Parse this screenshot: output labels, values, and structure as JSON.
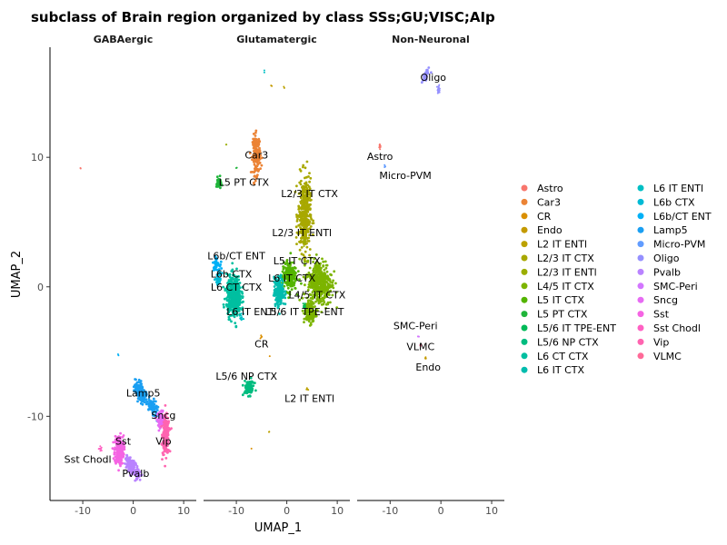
{
  "chart_data": {
    "type": "scatter",
    "title": "subclass of Brain region organized by class SSs;GU;VISC;AIp",
    "xlabel": "UMAP_1",
    "ylabel": "UMAP_2",
    "xlim": [
      -16.5,
      12.5
    ],
    "ylim": [
      -16.5,
      18.5
    ],
    "x_ticks": [
      -10,
      0,
      10
    ],
    "y_ticks": [
      -10,
      0,
      10
    ],
    "legend_position": "right",
    "facets": [
      {
        "name": "GABAergic",
        "clusters": [
          {
            "class": "Lamp5",
            "x": 1.5,
            "y": -8.2,
            "sx": 1.2,
            "sy": 0.6,
            "rot": -30,
            "n": 160,
            "label": "Lamp5",
            "lx": 2,
            "ly": -8.2
          },
          {
            "class": "Lamp5",
            "x": 3.8,
            "y": -9.2,
            "sx": 0.9,
            "sy": 0.5,
            "rot": -30,
            "n": 80
          },
          {
            "class": "Sncg",
            "x": 5.5,
            "y": -10.2,
            "sx": 0.7,
            "sy": 0.5,
            "rot": 0,
            "n": 80,
            "label": "Sncg",
            "lx": 6,
            "ly": -9.9
          },
          {
            "class": "Vip",
            "x": 6.5,
            "y": -11.5,
            "sx": 0.6,
            "sy": 1.3,
            "rot": 0,
            "n": 220,
            "label": "Vip",
            "lx": 6,
            "ly": -11.9
          },
          {
            "class": "Sst",
            "x": -2.8,
            "y": -12.6,
            "sx": 0.8,
            "sy": 1.0,
            "rot": 0,
            "n": 260,
            "label": "Sst",
            "lx": -2,
            "ly": -11.9
          },
          {
            "class": "Sst Chodl",
            "x": -6.5,
            "y": -12.5,
            "sx": 0.3,
            "sy": 0.2,
            "rot": 0,
            "n": 10,
            "label": "Sst Chodl",
            "lx": -9,
            "ly": -13.3
          },
          {
            "class": "Pvalb",
            "x": -0.5,
            "y": -13.8,
            "sx": 0.9,
            "sy": 0.5,
            "rot": -25,
            "n": 150,
            "label": "Pvalb",
            "lx": 0.5,
            "ly": -14.4
          },
          {
            "class": "Pvalb",
            "x": 0.8,
            "y": -14.4,
            "sx": 0.6,
            "sy": 0.4,
            "rot": -25,
            "n": 60
          },
          {
            "class": "Astro",
            "x": -10.5,
            "y": 9.2,
            "sx": 0.1,
            "sy": 0.1,
            "rot": 0,
            "n": 2
          },
          {
            "class": "L6b/CT ENT",
            "x": -3,
            "y": -5.3,
            "sx": 0.1,
            "sy": 0.1,
            "rot": 0,
            "n": 2
          }
        ]
      },
      {
        "name": "Glutamatergic",
        "clusters": [
          {
            "class": "Car3",
            "x": -6,
            "y": 10.2,
            "sx": 0.7,
            "sy": 1.4,
            "rot": 0,
            "n": 160,
            "label": "Car3",
            "lx": -6,
            "ly": 10.2
          },
          {
            "class": "L5 PT CTX",
            "x": -13.5,
            "y": 8.0,
            "sx": 0.4,
            "sy": 0.4,
            "rot": 0,
            "n": 40,
            "label": "L5 PT CTX",
            "lx": -8.5,
            "ly": 8.1
          },
          {
            "class": "L2/3 IT CTX",
            "x": 3.5,
            "y": 5.5,
            "sx": 1.1,
            "sy": 2.6,
            "rot": 0,
            "n": 380,
            "label": "L2/3 IT CTX",
            "lx": 4.5,
            "ly": 7.2
          },
          {
            "class": "L2/3 IT ENTl",
            "x": 3.5,
            "y": 3.5,
            "sx": 0.3,
            "sy": 0.3,
            "rot": 0,
            "n": 10,
            "label": "L2/3 IT ENTl",
            "lx": 3,
            "ly": 4.2
          },
          {
            "class": "L4/5 IT CTX",
            "x": 6.5,
            "y": 0.3,
            "sx": 2.2,
            "sy": 1.6,
            "rot": 0,
            "n": 380,
            "label": "L4/5 IT CTX",
            "lx": 6,
            "ly": -0.6
          },
          {
            "class": "L4/5 IT CTX",
            "x": 4.5,
            "y": -2.0,
            "sx": 1.0,
            "sy": 0.8,
            "rot": 0,
            "n": 120
          },
          {
            "class": "L5 IT CTX",
            "x": 0.5,
            "y": 0.8,
            "sx": 1.3,
            "sy": 1.0,
            "rot": 0,
            "n": 200,
            "label": "L5 IT CTX",
            "lx": 2,
            "ly": 2
          },
          {
            "class": "L6 IT CTX",
            "x": -1.5,
            "y": -0.4,
            "sx": 0.9,
            "sy": 1.0,
            "rot": 0,
            "n": 200,
            "label": "L6 IT CTX",
            "lx": 1,
            "ly": 0.7
          },
          {
            "class": "L5/6 IT TPE-ENT",
            "x": 3.5,
            "y": -1.5,
            "sx": 0.3,
            "sy": 0.3,
            "rot": 0,
            "n": 15,
            "label": "L5/6 IT TPE-ENT",
            "lx": 3.5,
            "ly": -1.9
          },
          {
            "class": "L6 CT CTX",
            "x": -10.5,
            "y": -0.7,
            "sx": 1.3,
            "sy": 1.4,
            "rot": 0,
            "n": 480,
            "label": "L6 CT CTX",
            "lx": -10,
            "ly": 0
          },
          {
            "class": "L6b/CT ENT",
            "x": -14,
            "y": 1.8,
            "sx": 0.6,
            "sy": 0.4,
            "rot": 0,
            "n": 40,
            "label": "L6b/CT ENT",
            "lx": -10,
            "ly": 2.4
          },
          {
            "class": "L6b CTX",
            "x": -13.5,
            "y": 0.6,
            "sx": 0.5,
            "sy": 0.4,
            "rot": 0,
            "n": 30,
            "label": "L6b CTX",
            "lx": -11,
            "ly": 1
          },
          {
            "class": "L6 IT ENTl",
            "x": -9,
            "y": -2.4,
            "sx": 0.4,
            "sy": 0.3,
            "rot": 0,
            "n": 15,
            "label": "L6 IT ENTl",
            "lx": -7,
            "ly": -1.9
          },
          {
            "class": "CR",
            "x": -5,
            "y": -3.8,
            "sx": 0.2,
            "sy": 0.2,
            "rot": 0,
            "n": 4,
            "label": "CR",
            "lx": -5,
            "ly": -4.4
          },
          {
            "class": "L2 IT ENTl",
            "x": 4,
            "y": -7.9,
            "sx": 0.2,
            "sy": 0.2,
            "rot": 0,
            "n": 4,
            "label": "L2 IT ENTl",
            "lx": 4.5,
            "ly": -8.6
          },
          {
            "class": "L5/6 NP CTX",
            "x": -7.5,
            "y": -7.8,
            "sx": 0.9,
            "sy": 0.5,
            "rot": 0,
            "n": 100,
            "label": "L5/6 NP CTX",
            "lx": -8,
            "ly": -6.9
          },
          {
            "class": "Endo",
            "x": -3,
            "y": 15.5,
            "sx": 0.1,
            "sy": 0.1,
            "rot": 0,
            "n": 2
          },
          {
            "class": "L2 IT ENTl",
            "x": -0.5,
            "y": 15.4,
            "sx": 0.1,
            "sy": 0.1,
            "rot": 0,
            "n": 2
          },
          {
            "class": "L6 IT ENTl",
            "x": -4.5,
            "y": 16.6,
            "sx": 0.1,
            "sy": 0.1,
            "rot": 0,
            "n": 2
          },
          {
            "class": "L2/3 IT ENTl",
            "x": -12,
            "y": 10.9,
            "sx": 0.1,
            "sy": 0.1,
            "rot": 0,
            "n": 2
          },
          {
            "class": "L5 PT CTX",
            "x": -10,
            "y": 9.2,
            "sx": 0.1,
            "sy": 0.1,
            "rot": 0,
            "n": 2
          },
          {
            "class": "L2 IT ENTl",
            "x": -3.5,
            "y": -11.2,
            "sx": 0.1,
            "sy": 0.1,
            "rot": 0,
            "n": 2
          },
          {
            "class": "CR",
            "x": -7,
            "y": -12.5,
            "sx": 0.1,
            "sy": 0.1,
            "rot": 0,
            "n": 1
          },
          {
            "class": "CR",
            "x": -3.5,
            "y": -5.4,
            "sx": 0.1,
            "sy": 0.1,
            "rot": 0,
            "n": 1
          }
        ]
      },
      {
        "name": "Non-Neuronal",
        "clusters": [
          {
            "class": "Oligo",
            "x": -3,
            "y": 16.3,
            "sx": 0.7,
            "sy": 0.3,
            "rot": 40,
            "n": 40,
            "label": "Oligo",
            "lx": -1.5,
            "ly": 16.2
          },
          {
            "class": "Oligo",
            "x": -0.5,
            "y": 15.2,
            "sx": 0.3,
            "sy": 0.3,
            "rot": 0,
            "n": 20
          },
          {
            "class": "Astro",
            "x": -12,
            "y": 10.8,
            "sx": 0.15,
            "sy": 0.2,
            "rot": 0,
            "n": 10,
            "label": "Astro",
            "lx": -12,
            "ly": 10.1
          },
          {
            "class": "Micro-PVM",
            "x": -11,
            "y": 9.3,
            "sx": 0.1,
            "sy": 0.1,
            "rot": 0,
            "n": 4,
            "label": "Micro-PVM",
            "lx": -7,
            "ly": 8.6
          },
          {
            "class": "SMC-Peri",
            "x": -4.5,
            "y": -3.8,
            "sx": 0.1,
            "sy": 0.1,
            "rot": 0,
            "n": 3,
            "label": "SMC-Peri",
            "lx": -5,
            "ly": -3
          },
          {
            "class": "VLMC",
            "x": -4,
            "y": -4.5,
            "sx": 0.1,
            "sy": 0.1,
            "rot": 0,
            "n": 3,
            "label": "VLMC",
            "lx": -4,
            "ly": -4.6
          },
          {
            "class": "Endo",
            "x": -3,
            "y": -5.5,
            "sx": 0.15,
            "sy": 0.1,
            "rot": 0,
            "n": 4,
            "label": "Endo",
            "lx": -2.5,
            "ly": -6.2
          }
        ]
      }
    ],
    "legend": [
      {
        "name": "Astro",
        "color": "#F8766D"
      },
      {
        "name": "Car3",
        "color": "#EB8335"
      },
      {
        "name": "CR",
        "color": "#DA8F00"
      },
      {
        "name": "Endo",
        "color": "#C49A00"
      },
      {
        "name": "L2 IT ENTl",
        "color": "#BCA100"
      },
      {
        "name": "L2/3 IT CTX",
        "color": "#A8A800"
      },
      {
        "name": "L2/3 IT ENTl",
        "color": "#9BAE00"
      },
      {
        "name": "L4/5 IT CTX",
        "color": "#7CB400"
      },
      {
        "name": "L5 IT CTX",
        "color": "#53B400"
      },
      {
        "name": "L5 PT CTX",
        "color": "#1FB53A"
      },
      {
        "name": "L5/6 IT TPE-ENT",
        "color": "#00BA58"
      },
      {
        "name": "L5/6 NP CTX",
        "color": "#00BC7F"
      },
      {
        "name": "L6 CT CTX",
        "color": "#00BFA0"
      },
      {
        "name": "L6 IT CTX",
        "color": "#00BCAE"
      },
      {
        "name": "L6 IT ENTl",
        "color": "#00BFC4"
      },
      {
        "name": "L6b CTX",
        "color": "#00BAD5"
      },
      {
        "name": "L6b/CT ENT",
        "color": "#00B0F6"
      },
      {
        "name": "Lamp5",
        "color": "#1A9FF2"
      },
      {
        "name": "Micro-PVM",
        "color": "#619CFF"
      },
      {
        "name": "Oligo",
        "color": "#9590FF"
      },
      {
        "name": "Pvalb",
        "color": "#B983FF"
      },
      {
        "name": "SMC-Peri",
        "color": "#D376FF"
      },
      {
        "name": "Sncg",
        "color": "#E76BF3"
      },
      {
        "name": "Sst",
        "color": "#F564E3"
      },
      {
        "name": "Sst Chodl",
        "color": "#FF61C3"
      },
      {
        "name": "Vip",
        "color": "#FF64B0"
      },
      {
        "name": "VLMC",
        "color": "#FF6A98"
      }
    ]
  }
}
